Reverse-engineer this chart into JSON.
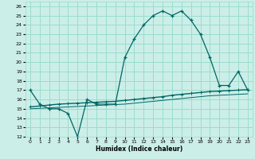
{
  "title": "",
  "xlabel": "Humidex (Indice chaleur)",
  "background_color": "#cceee8",
  "grid_color": "#99ddcc",
  "line_color": "#006666",
  "xlim": [
    -0.5,
    23.5
  ],
  "ylim": [
    12,
    26.5
  ],
  "yticks": [
    12,
    13,
    14,
    15,
    16,
    17,
    18,
    19,
    20,
    21,
    22,
    23,
    24,
    25,
    26
  ],
  "xticks": [
    0,
    1,
    2,
    3,
    4,
    5,
    6,
    7,
    8,
    9,
    10,
    11,
    12,
    13,
    14,
    15,
    16,
    17,
    18,
    19,
    20,
    21,
    22,
    23
  ],
  "series1_x": [
    0,
    1,
    2,
    3,
    4,
    5,
    6,
    7,
    8,
    9,
    10,
    11,
    12,
    13,
    14,
    15,
    16,
    17,
    18,
    19,
    20,
    21,
    22,
    23
  ],
  "series1_y": [
    17,
    15.5,
    15,
    15,
    14.5,
    12,
    16,
    15.5,
    15.5,
    15.5,
    20.5,
    22.5,
    24,
    25,
    25.5,
    25,
    25.5,
    24.5,
    23,
    20.5,
    17.5,
    17.5,
    19,
    17
  ],
  "series2_x": [
    0,
    1,
    2,
    3,
    4,
    5,
    6,
    7,
    8,
    9,
    10,
    11,
    12,
    13,
    14,
    15,
    16,
    17,
    18,
    19,
    20,
    21,
    22,
    23
  ],
  "series2_y": [
    15.2,
    15.3,
    15.4,
    15.5,
    15.55,
    15.6,
    15.65,
    15.7,
    15.75,
    15.8,
    15.9,
    16.0,
    16.1,
    16.2,
    16.3,
    16.45,
    16.55,
    16.65,
    16.75,
    16.85,
    16.9,
    16.95,
    17.0,
    17.05
  ],
  "series3_x": [
    0,
    1,
    2,
    3,
    4,
    5,
    6,
    7,
    8,
    9,
    10,
    11,
    12,
    13,
    14,
    15,
    16,
    17,
    18,
    19,
    20,
    21,
    22,
    23
  ],
  "series3_y": [
    15.0,
    15.05,
    15.1,
    15.15,
    15.2,
    15.25,
    15.3,
    15.35,
    15.4,
    15.45,
    15.5,
    15.6,
    15.7,
    15.8,
    15.9,
    16.0,
    16.1,
    16.2,
    16.3,
    16.4,
    16.45,
    16.5,
    16.55,
    16.6
  ]
}
